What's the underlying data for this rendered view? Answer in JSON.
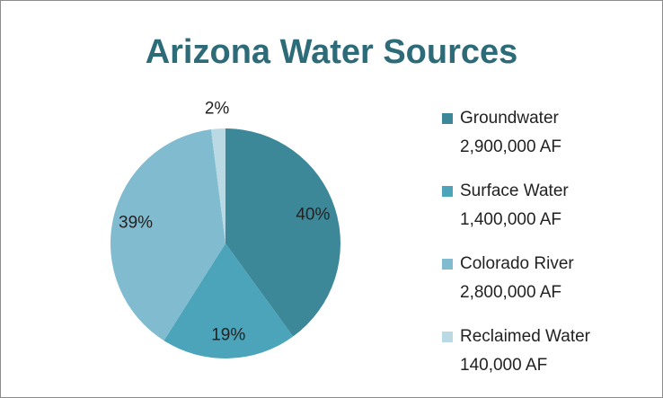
{
  "chart_data": {
    "type": "pie",
    "title": "Arizona Water Sources",
    "categories": [
      "Groundwater",
      "Surface Water",
      "Colorado River",
      "Reclaimed Water"
    ],
    "amounts": [
      "2,900,000 AF",
      "1,400,000 AF",
      "2,800,000 AF",
      "140,000 AF"
    ],
    "values": [
      40,
      19,
      39,
      2
    ],
    "value_labels": [
      "40%",
      "19%",
      "39%",
      "2%"
    ],
    "colors": [
      "#3c8899",
      "#4ba4b9",
      "#80bbd0",
      "#b9dae4"
    ],
    "legend": "right"
  }
}
